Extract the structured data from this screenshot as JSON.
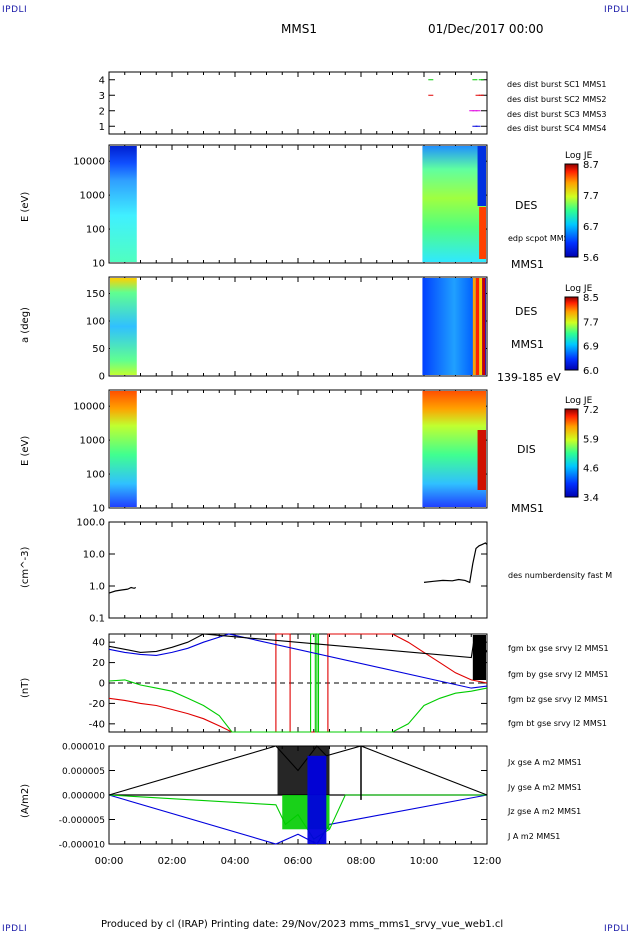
{
  "corners": {
    "top_left": "IPDLI",
    "top_right": "IPDLI",
    "bottom_left": "IPDLI",
    "bottom_right": "IPDLI"
  },
  "header": {
    "spacecraft": "MMS1",
    "datetime": "01/Dec/2017 00:00"
  },
  "footer": "Produced by cl (IRAP)   Printing date: 29/Nov/2023   mms_mms1_srvy_vue_web1.cl",
  "x_ticks": [
    "00:00",
    "02:00",
    "04:00",
    "06:00",
    "08:00",
    "10:00",
    "12:00"
  ],
  "colors": {
    "red": "#e00000",
    "green": "#00cc00",
    "blue": "#0000dd",
    "magenta": "#e000e0",
    "black": "#000000"
  },
  "panels": {
    "p1": {
      "yticks": [
        "4",
        "3",
        "2",
        "1"
      ],
      "legend": [
        "des dist burst SC1 MMS1",
        "des dist burst SC2 MMS2",
        "des dist burst SC3 MMS3",
        "des dist burst SC4 MMS4"
      ],
      "legend_colors": [
        "#0000dd",
        "#e000e0",
        "#e00000",
        "#00cc00"
      ]
    },
    "p2": {
      "ylabel": "E (eV)",
      "yticks": [
        "10000",
        "1000",
        "100",
        "10"
      ],
      "label1": "DES",
      "label2": "edp scpot MMS1",
      "label3": "MMS1",
      "cbar_title": "Log JE",
      "cbar_ticks": [
        "8.7",
        "7.7",
        "6.7",
        "5.6"
      ]
    },
    "p3": {
      "ylabel": "a (deg)",
      "yticks": [
        "150",
        "100",
        "50",
        "0"
      ],
      "label1": "DES",
      "label2": "MMS1",
      "label3": "139-185 eV",
      "cbar_title": "Log JE",
      "cbar_ticks": [
        "8.5",
        "7.7",
        "6.9",
        "6.0"
      ]
    },
    "p4": {
      "ylabel": "E (eV)",
      "yticks": [
        "10000",
        "1000",
        "100",
        "10"
      ],
      "label1": "DIS",
      "label2": "MMS1",
      "cbar_title": "Log JE",
      "cbar_ticks": [
        "7.2",
        "5.9",
        "4.6",
        "3.4"
      ]
    },
    "p5": {
      "ylabel": "(cm^-3)",
      "yticks": [
        "100.0",
        "10.0",
        "1.0",
        "0.1"
      ],
      "legend": "des numberdensity fast M"
    },
    "p6": {
      "ylabel": "(nT)",
      "yticks": [
        "40",
        "20",
        "0",
        "-20",
        "-40"
      ],
      "legend": [
        "fgm bx gse srvy l2 MMS1",
        "fgm by gse srvy l2 MMS1",
        "fgm bz gse srvy l2 MMS1",
        "fgm bt gse srvy l2 MMS1"
      ],
      "legend_colors": [
        "#e00000",
        "#00cc00",
        "#0000dd",
        "#000000"
      ]
    },
    "p7": {
      "ylabel": "(A/m2)",
      "yticks": [
        "0.000010",
        "0.000005",
        "0.000000",
        "-0.000005",
        "-0.000010"
      ],
      "legend": [
        "Jx gse A m2 MMS1",
        "Jy gse A m2 MMS1",
        "Jz gse A m2 MMS1",
        "J A m2 MMS1"
      ],
      "legend_colors": [
        "#e00000",
        "#00cc00",
        "#0000dd",
        "#000000"
      ]
    }
  },
  "chart_data": [
    {
      "type": "scatter",
      "panel": "burst-availability",
      "x_range_hours": [
        0,
        12
      ],
      "ylim": [
        0.5,
        4.5
      ],
      "series": [
        {
          "name": "des dist burst SC1 MMS1",
          "color": "#0000dd",
          "x": [
            11.6,
            11.7
          ],
          "y": [
            1,
            1
          ]
        },
        {
          "name": "des dist burst SC2 MMS2",
          "color": "#e000e0",
          "x": [
            11.5,
            11.6,
            11.7
          ],
          "y": [
            2,
            2,
            2
          ]
        },
        {
          "name": "des dist burst SC3 MMS3",
          "color": "#e00000",
          "x": [
            10.2,
            11.7,
            11.8
          ],
          "y": [
            3,
            3,
            3
          ]
        },
        {
          "name": "des dist burst SC4 MMS4",
          "color": "#00cc00",
          "x": [
            10.2,
            11.6,
            11.8
          ],
          "y": [
            4,
            4,
            4
          ]
        }
      ]
    },
    {
      "type": "heatmap",
      "panel": "electron-energy-spectrogram",
      "ylabel": "E (eV)",
      "yscale": "log",
      "ylim": [
        10,
        30000
      ],
      "data_intervals_hours": [
        [
          0,
          0.85
        ],
        [
          9.95,
          12
        ]
      ],
      "colorbar": {
        "title": "Log JE",
        "range": [
          5.6,
          8.7
        ]
      }
    },
    {
      "type": "heatmap",
      "panel": "electron-pitch-angle",
      "ylabel": "a (deg)",
      "ylim": [
        0,
        180
      ],
      "data_intervals_hours": [
        [
          0,
          0.85
        ],
        [
          9.95,
          12
        ]
      ],
      "colorbar": {
        "title": "Log JE",
        "range": [
          6.0,
          8.5
        ]
      }
    },
    {
      "type": "heatmap",
      "panel": "ion-energy-spectrogram",
      "ylabel": "E (eV)",
      "yscale": "log",
      "ylim": [
        10,
        30000
      ],
      "data_intervals_hours": [
        [
          0,
          0.85
        ],
        [
          9.95,
          12
        ]
      ],
      "colorbar": {
        "title": "Log JE",
        "range": [
          3.4,
          7.2
        ]
      }
    },
    {
      "type": "line",
      "panel": "density",
      "ylabel": "(cm^-3)",
      "yscale": "log",
      "ylim": [
        0.1,
        100
      ],
      "series": [
        {
          "name": "des numberdensity fast M",
          "color": "#000000",
          "x": [
            0.0,
            0.2,
            0.4,
            0.6,
            0.7,
            0.8,
            0.85,
            10.0,
            10.3,
            10.6,
            10.9,
            11.1,
            11.3,
            11.45,
            11.55,
            11.65,
            11.75,
            11.85,
            11.95,
            12.0
          ],
          "y": [
            0.6,
            0.7,
            0.75,
            0.8,
            0.9,
            0.85,
            0.9,
            1.3,
            1.4,
            1.5,
            1.45,
            1.6,
            1.5,
            1.3,
            5,
            15,
            18,
            20,
            22,
            20
          ]
        }
      ]
    },
    {
      "type": "line",
      "panel": "magnetic-field",
      "ylabel": "(nT)",
      "ylim": [
        -48,
        48
      ],
      "series": [
        {
          "name": "fgm bx gse srvy l2 MMS1",
          "color": "#e00000",
          "x": [
            0,
            0.5,
            1,
            1.5,
            2,
            2.5,
            3,
            3.5,
            3.9,
            5.3,
            5.3,
            5.75,
            5.75,
            6.95,
            6.95,
            9.0,
            9.5,
            10,
            10.5,
            11,
            11.5,
            12
          ],
          "y": [
            -15,
            -17,
            -20,
            -22,
            -26,
            -30,
            -35,
            -42,
            -48,
            -48,
            48,
            48,
            -48,
            -48,
            48,
            48,
            40,
            30,
            20,
            10,
            3,
            0
          ]
        },
        {
          "name": "fgm by gse srvy l2 MMS1",
          "color": "#00cc00",
          "x": [
            0,
            0.5,
            1,
            1.5,
            2,
            2.5,
            3,
            3.5,
            3.9,
            6.4,
            6.4,
            6.55,
            6.55,
            6.6,
            6.6,
            6.65,
            6.65,
            8.0,
            9.0,
            9.5,
            10,
            10.5,
            11,
            11.5,
            12
          ],
          "y": [
            2,
            3,
            -2,
            -5,
            -8,
            -15,
            -22,
            -32,
            -48,
            -48,
            48,
            48,
            -48,
            -48,
            48,
            48,
            -48,
            -48,
            -48,
            -40,
            -22,
            -15,
            -10,
            -8,
            -5
          ]
        },
        {
          "name": "fgm bz gse srvy l2 MMS1",
          "color": "#0000dd",
          "x": [
            0,
            0.5,
            1,
            1.5,
            2,
            2.5,
            3,
            3.5,
            3.8,
            11.5,
            12
          ],
          "y": [
            33,
            30,
            28,
            27,
            30,
            34,
            40,
            45,
            48,
            -5,
            -3
          ]
        },
        {
          "name": "fgm bt gse srvy l2 MMS1",
          "color": "#000000",
          "x": [
            0,
            0.5,
            1,
            1.5,
            2,
            2.5,
            3,
            11.5,
            11.6,
            11.7,
            11.8,
            12
          ],
          "y": [
            36,
            33,
            30,
            31,
            35,
            40,
            48,
            25,
            45,
            10,
            40,
            30
          ]
        }
      ]
    },
    {
      "type": "line",
      "panel": "current-density",
      "ylabel": "(A/m2)",
      "ylim": [
        -1e-05,
        1e-05
      ],
      "series": [
        {
          "name": "Jx gse A m2 MMS1",
          "color": "#e00000",
          "x": [
            0,
            12
          ],
          "y": [
            0,
            0
          ]
        },
        {
          "name": "Jy gse A m2 MMS1",
          "color": "#00cc00",
          "x": [
            0,
            5.3,
            5.6,
            6.0,
            6.5,
            7.0,
            7.5,
            8.0,
            12
          ],
          "y": [
            0,
            -2e-06,
            -6e-06,
            -4e-06,
            -9e-06,
            -7e-06,
            0,
            0,
            0
          ]
        },
        {
          "name": "Jz gse A m2 MMS1",
          "color": "#0000dd",
          "x": [
            0,
            5.3,
            6.0,
            6.6,
            7.0,
            12
          ],
          "y": [
            0,
            -1e-05,
            -8e-06,
            -1e-05,
            -6e-06,
            0
          ]
        },
        {
          "name": "J A m2 MMS1",
          "color": "#000000",
          "x": [
            0,
            5.3,
            6.0,
            6.6,
            6.9,
            8.0,
            12
          ],
          "y": [
            0,
            1e-05,
            5e-06,
            1e-05,
            8e-06,
            1e-05,
            0
          ]
        }
      ]
    }
  ]
}
